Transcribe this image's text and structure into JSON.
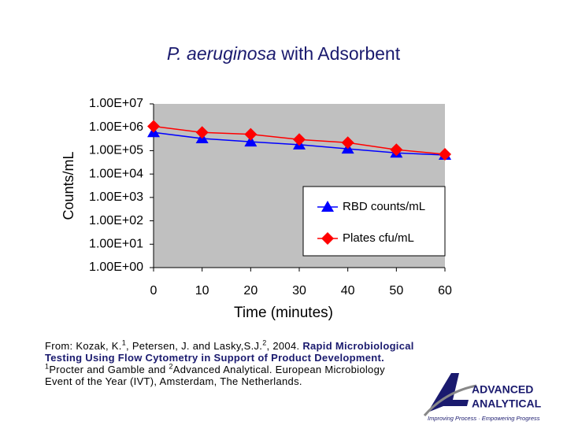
{
  "chart_data": {
    "type": "line",
    "title": [
      "P. aeruginosa",
      "with Adsorbent"
    ],
    "x_label": "Time (minutes)",
    "y_label": "Counts/mL",
    "x": [
      0,
      10,
      20,
      30,
      40,
      50,
      60
    ],
    "series": [
      {
        "name": "RBD counts/mL",
        "color": "#0000ff",
        "marker": "triangle",
        "values": [
          600000,
          330000,
          240000,
          180000,
          120000,
          80000,
          65000
        ]
      },
      {
        "name": "Plates cfu/mL",
        "color": "#ff0000",
        "marker": "diamond",
        "values": [
          1100000,
          600000,
          500000,
          300000,
          220000,
          110000,
          70000
        ]
      }
    ],
    "xlim": [
      0,
      60
    ],
    "xticks": [
      0,
      10,
      20,
      30,
      40,
      50,
      60
    ],
    "ylim": [
      1,
      10000000
    ],
    "y_scale": "log",
    "yticks": [
      {
        "value": 1,
        "label": "1.00E+00"
      },
      {
        "value": 10,
        "label": "1.00E+01"
      },
      {
        "value": 100,
        "label": "1.00E+02"
      },
      {
        "value": 1000,
        "label": "1.00E+03"
      },
      {
        "value": 10000,
        "label": "1.00E+04"
      },
      {
        "value": 100000,
        "label": "1.00E+05"
      },
      {
        "value": 1000000,
        "label": "1.00E+06"
      },
      {
        "value": 10000000,
        "label": "1.00E+07"
      }
    ],
    "grid": false,
    "plot_background": "#c0c0c0",
    "legend": "lower right"
  },
  "citation": [
    "From: Kozak, K.",
    "1",
    ", Petersen, J. and Lasky,S.J.",
    "2",
    ", 2004. ",
    "Rapid Microbiological Testing Using Flow Cytometry in Support of Product Development.",
    " ",
    "1",
    "Procter and Gamble and ",
    "2",
    "Advanced Analytical.  European Microbiology Event of the Year (IVT), Amsterdam, The Netherlands."
  ],
  "logo": {
    "line1": "ADVANCED",
    "line2": "ANALYTICAL",
    "tagline": "Improving Process · Empowering Progress"
  }
}
